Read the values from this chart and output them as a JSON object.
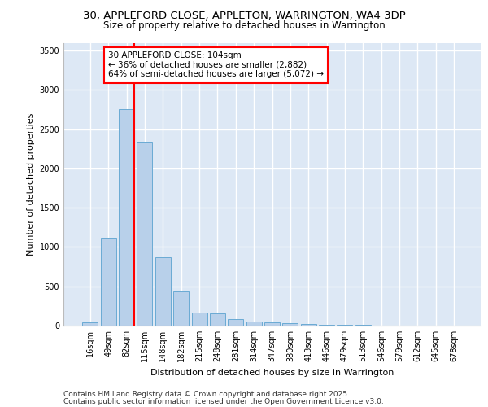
{
  "title_line1": "30, APPLEFORD CLOSE, APPLETON, WARRINGTON, WA4 3DP",
  "title_line2": "Size of property relative to detached houses in Warrington",
  "xlabel": "Distribution of detached houses by size in Warrington",
  "ylabel": "Number of detached properties",
  "categories": [
    "16sqm",
    "49sqm",
    "82sqm",
    "115sqm",
    "148sqm",
    "182sqm",
    "215sqm",
    "248sqm",
    "281sqm",
    "314sqm",
    "347sqm",
    "380sqm",
    "413sqm",
    "446sqm",
    "479sqm",
    "513sqm",
    "546sqm",
    "579sqm",
    "612sqm",
    "645sqm",
    "678sqm"
  ],
  "values": [
    40,
    1120,
    2760,
    2330,
    870,
    440,
    170,
    160,
    85,
    55,
    40,
    35,
    20,
    15,
    10,
    8,
    5,
    5,
    3,
    2,
    2
  ],
  "bar_color": "#b8d0ea",
  "bar_edge_color": "#6aaad4",
  "background_color": "#dde8f5",
  "grid_color": "#ffffff",
  "annotation_box_text": "30 APPLEFORD CLOSE: 104sqm\n← 36% of detached houses are smaller (2,882)\n64% of semi-detached houses are larger (5,072) →",
  "vertical_line_color": "red",
  "vertical_line_x": 2.43,
  "footer_line1": "Contains HM Land Registry data © Crown copyright and database right 2025.",
  "footer_line2": "Contains public sector information licensed under the Open Government Licence v3.0.",
  "ylim": [
    0,
    3600
  ],
  "yticks": [
    0,
    500,
    1000,
    1500,
    2000,
    2500,
    3000,
    3500
  ],
  "title_fontsize": 9.5,
  "subtitle_fontsize": 8.5,
  "axis_label_fontsize": 8,
  "tick_fontsize": 7,
  "annotation_fontsize": 7.5,
  "footer_fontsize": 6.5
}
